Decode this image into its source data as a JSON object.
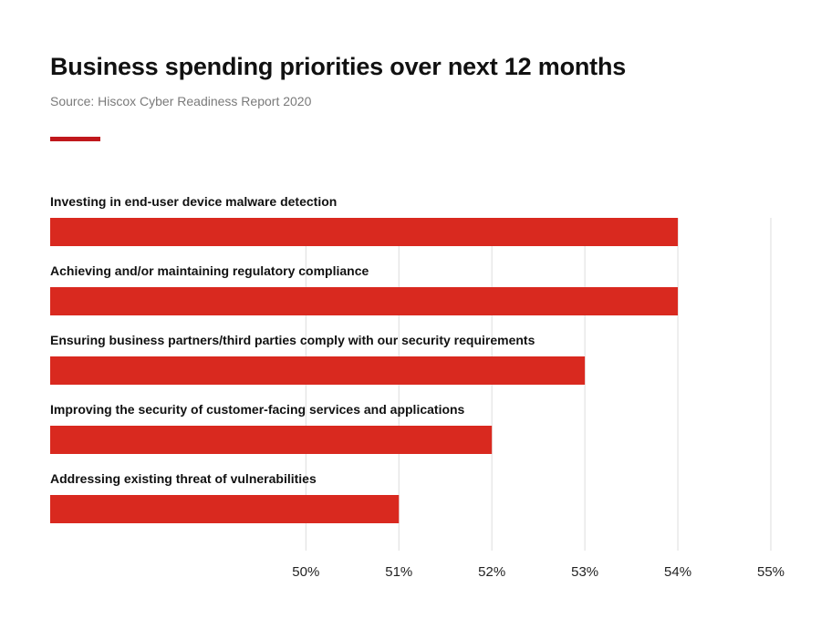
{
  "header": {
    "title": "Business spending priorities over next 12 months",
    "source": "Source: Hiscox Cyber Readiness Report 2020"
  },
  "colors": {
    "bar": "#d9291f",
    "accent": "#c0181c",
    "grid": "#dddddd"
  },
  "chart_data": {
    "type": "bar",
    "orientation": "horizontal",
    "title": "Business spending priorities over next 12 months",
    "subtitle": "Source: Hiscox Cyber Readiness Report 2020",
    "categories": [
      "Investing in end-user device malware detection",
      "Achieving and/or maintaining regulatory compliance",
      "Ensuring business partners/third parties comply with our security requirements",
      "Improving the security of customer-facing services and applications",
      "Addressing existing threat of vulnerabilities"
    ],
    "values": [
      54,
      54,
      53,
      52,
      51
    ],
    "unit": "%",
    "xlim": [
      47.25,
      55
    ],
    "ticks": [
      50,
      51,
      52,
      53,
      54,
      55
    ],
    "tick_labels": [
      "50%",
      "51%",
      "52%",
      "53%",
      "54%",
      "55%"
    ],
    "grid": true,
    "legend": "none"
  }
}
